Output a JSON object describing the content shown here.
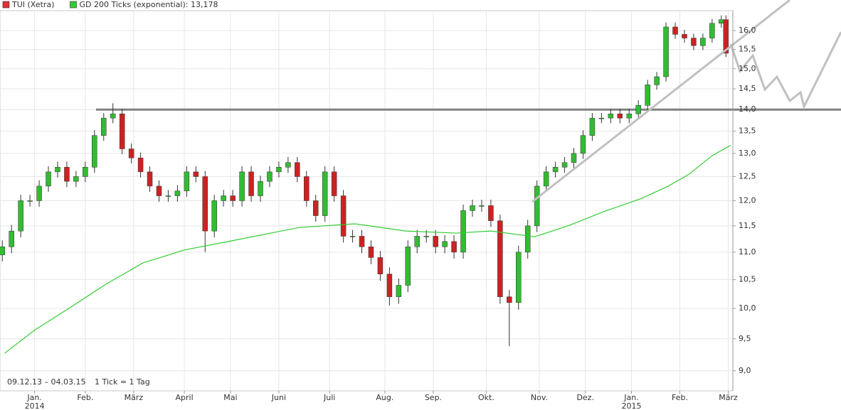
{
  "chart_data": {
    "type": "candlestick",
    "legend": "top-left",
    "grid": true,
    "log_y": true,
    "period": "09.12.13 – 04.03.15",
    "tick_note": "1 Tick = 1 Tag",
    "hline": 14,
    "hline_color": "#808080",
    "xlim": [
      -1,
      317
    ],
    "ylim": [
      8.7,
      16.55
    ],
    "xticks": [
      {
        "value": 14,
        "label": "Jan."
      },
      {
        "value": 36,
        "label": "Feb."
      },
      {
        "value": 57,
        "label": "März"
      },
      {
        "value": 79,
        "label": "April"
      },
      {
        "value": 99,
        "label": "Mai"
      },
      {
        "value": 120,
        "label": "Juni"
      },
      {
        "value": 142,
        "label": "Juli"
      },
      {
        "value": 166,
        "label": "Aug."
      },
      {
        "value": 187,
        "label": "Sep."
      },
      {
        "value": 210,
        "label": "Okt."
      },
      {
        "value": 233,
        "label": "Nov."
      },
      {
        "value": 253,
        "label": "Dez."
      },
      {
        "value": 273,
        "label": "Jan."
      },
      {
        "value": 294,
        "label": "Feb."
      },
      {
        "value": 315,
        "label": "März"
      }
    ],
    "x_year_labels": [
      {
        "value": 14,
        "label": "2014"
      },
      {
        "value": 273,
        "label": "2015"
      }
    ],
    "yticks": [
      {
        "value": 9,
        "label": "9,0"
      },
      {
        "value": 9.5,
        "label": "9,5"
      },
      {
        "value": 10,
        "label": "10,0"
      },
      {
        "value": 10.5,
        "label": "10,5"
      },
      {
        "value": 11,
        "label": "11,0"
      },
      {
        "value": 11.5,
        "label": "11,5"
      },
      {
        "value": 12,
        "label": "12,0"
      },
      {
        "value": 12.5,
        "label": "12,5"
      },
      {
        "value": 13,
        "label": "13,0"
      },
      {
        "value": 13.5,
        "label": "13,5"
      },
      {
        "value": 14,
        "label": "14,0"
      },
      {
        "value": 14.5,
        "label": "14,5"
      },
      {
        "value": 15,
        "label": "15,0"
      },
      {
        "value": 15.5,
        "label": "15,5"
      },
      {
        "value": 16,
        "label": "16,0"
      }
    ],
    "series": [
      {
        "name": "TUI (Xetra)",
        "color": "#dd3333",
        "up_color": "#33bb33",
        "down_color": "#cc2222",
        "x": [
          0,
          4,
          8,
          12,
          16,
          20,
          24,
          28,
          32,
          36,
          40,
          44,
          48,
          52,
          56,
          60,
          64,
          68,
          72,
          76,
          80,
          84,
          88,
          92,
          96,
          100,
          104,
          108,
          112,
          116,
          120,
          124,
          128,
          132,
          136,
          140,
          144,
          148,
          152,
          156,
          160,
          164,
          168,
          172,
          176,
          180,
          184,
          188,
          192,
          196,
          200,
          204,
          208,
          212,
          216,
          220,
          224,
          228,
          232,
          236,
          240,
          244,
          248,
          252,
          256,
          260,
          264,
          268,
          272,
          276,
          280,
          284,
          288,
          292,
          296,
          300,
          304,
          308,
          312,
          314
        ],
        "open": [
          10.95,
          11.1,
          11.4,
          12.0,
          12.0,
          12.3,
          12.6,
          12.7,
          12.4,
          12.5,
          12.7,
          13.4,
          13.8,
          13.9,
          13.1,
          12.9,
          12.6,
          12.3,
          12.1,
          12.1,
          12.2,
          12.6,
          12.5,
          11.4,
          12.0,
          12.1,
          12.0,
          12.6,
          12.1,
          12.4,
          12.6,
          12.7,
          12.8,
          12.5,
          12.0,
          11.7,
          12.6,
          12.1,
          11.3,
          11.3,
          11.1,
          10.9,
          10.6,
          10.2,
          10.4,
          11.1,
          11.3,
          11.3,
          11.1,
          11.2,
          11.0,
          11.8,
          11.9,
          11.9,
          11.6,
          10.2,
          10.1,
          11.0,
          11.5,
          12.3,
          12.6,
          12.7,
          12.8,
          13.0,
          13.4,
          13.8,
          13.8,
          13.9,
          13.8,
          13.9,
          14.1,
          14.6,
          14.8,
          16.1,
          15.9,
          15.8,
          15.6,
          15.8,
          16.2,
          16.3
        ],
        "high": [
          11.22,
          11.52,
          12.12,
          12.12,
          12.42,
          12.72,
          12.82,
          12.82,
          12.62,
          12.82,
          13.52,
          13.92,
          14.15,
          14.02,
          13.22,
          13.02,
          12.72,
          12.42,
          12.22,
          12.32,
          12.72,
          12.72,
          12.62,
          12.12,
          12.22,
          12.22,
          12.72,
          12.72,
          12.52,
          12.72,
          12.82,
          12.92,
          12.92,
          12.62,
          12.12,
          12.72,
          12.72,
          12.22,
          11.42,
          11.42,
          11.22,
          11.02,
          10.72,
          10.52,
          11.22,
          11.42,
          11.42,
          11.42,
          11.32,
          11.32,
          11.92,
          12.02,
          12.02,
          12.02,
          11.72,
          10.32,
          11.12,
          11.62,
          12.42,
          12.72,
          12.82,
          12.92,
          13.12,
          13.52,
          13.92,
          13.92,
          14.02,
          14.02,
          14.02,
          14.22,
          14.72,
          14.92,
          16.22,
          16.22,
          16.02,
          15.92,
          15.92,
          16.32,
          16.42,
          16.42
        ],
        "low": [
          10.83,
          10.98,
          11.28,
          11.88,
          11.88,
          12.18,
          12.48,
          12.28,
          12.28,
          12.38,
          12.58,
          13.28,
          13.68,
          12.98,
          12.78,
          12.48,
          12.18,
          11.98,
          11.98,
          11.98,
          12.08,
          12.38,
          11.0,
          11.28,
          11.88,
          11.88,
          11.88,
          11.98,
          11.98,
          12.28,
          12.48,
          12.58,
          12.38,
          11.88,
          11.58,
          11.58,
          11.98,
          11.18,
          11.18,
          10.98,
          10.78,
          10.48,
          10.05,
          10.08,
          10.28,
          10.98,
          11.18,
          10.98,
          10.98,
          10.88,
          10.88,
          11.68,
          11.78,
          11.48,
          10.08,
          9.38,
          9.98,
          10.88,
          11.38,
          12.18,
          12.48,
          12.58,
          12.68,
          12.88,
          13.28,
          13.68,
          13.68,
          13.68,
          13.68,
          13.78,
          13.98,
          14.48,
          14.68,
          15.78,
          15.68,
          15.48,
          15.48,
          15.68,
          16.08,
          15.3
        ],
        "close": [
          11.1,
          11.4,
          12.0,
          12.0,
          12.3,
          12.6,
          12.7,
          12.4,
          12.5,
          12.7,
          13.4,
          13.8,
          13.9,
          13.1,
          12.9,
          12.6,
          12.3,
          12.1,
          12.1,
          12.2,
          12.6,
          12.5,
          11.4,
          12.0,
          12.1,
          12.0,
          12.6,
          12.1,
          12.4,
          12.6,
          12.7,
          12.8,
          12.5,
          12.0,
          11.7,
          12.6,
          12.1,
          11.3,
          11.3,
          11.1,
          10.9,
          10.6,
          10.2,
          10.4,
          11.1,
          11.3,
          11.3,
          11.1,
          11.2,
          11.0,
          11.8,
          11.9,
          11.9,
          11.6,
          10.2,
          10.1,
          11.0,
          11.5,
          12.3,
          12.6,
          12.7,
          12.8,
          13.0,
          13.4,
          13.8,
          13.8,
          13.9,
          13.8,
          13.9,
          14.1,
          14.6,
          14.8,
          16.1,
          15.9,
          15.8,
          15.6,
          15.8,
          16.2,
          16.3,
          15.4
        ]
      },
      {
        "name": "GD 200 Ticks (exponential): 13,178",
        "type": "line",
        "color": "#33cc33",
        "x": [
          1,
          14,
          30,
          45,
          61,
          79,
          98,
          129,
          153,
          175,
          197,
          212,
          231,
          246,
          261,
          277,
          289,
          298,
          308,
          316
        ],
        "values": [
          9.27,
          9.64,
          10.03,
          10.42,
          10.8,
          11.04,
          11.2,
          11.47,
          11.54,
          11.4,
          11.36,
          11.4,
          11.29,
          11.51,
          11.78,
          12.04,
          12.3,
          12.55,
          12.95,
          13.18
        ]
      }
    ]
  }
}
